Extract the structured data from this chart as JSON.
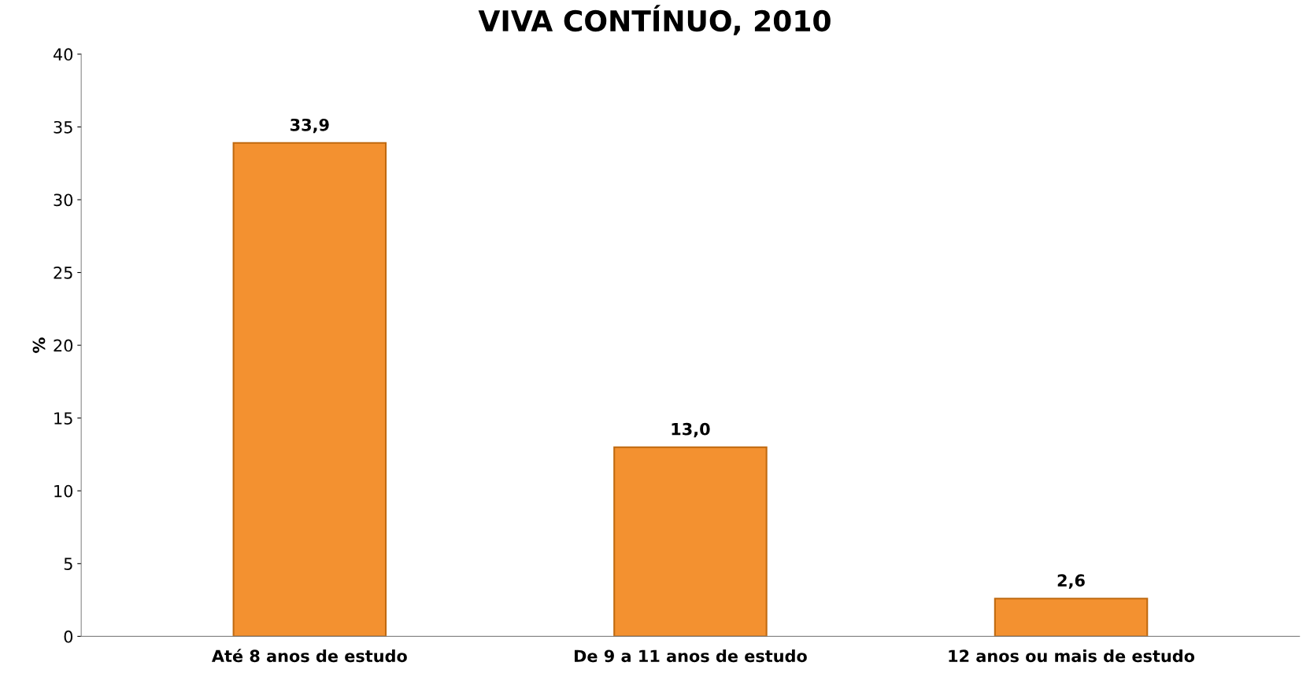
{
  "chart_data": {
    "type": "bar",
    "title": "VIVA CONTÍNUO, 2010",
    "ylabel": "%",
    "categories": [
      "Até 8 anos de estudo",
      "De 9 a 11 anos de estudo",
      "12 anos ou mais de estudo"
    ],
    "values": [
      33.9,
      13.0,
      2.6
    ],
    "value_labels": [
      "33,9",
      "13,0",
      "2,6"
    ],
    "color": "#f39130",
    "ylim": [
      0,
      40
    ],
    "yticks": [
      0,
      5,
      10,
      15,
      20,
      25,
      30,
      35,
      40
    ],
    "grid": false,
    "legend": false
  }
}
